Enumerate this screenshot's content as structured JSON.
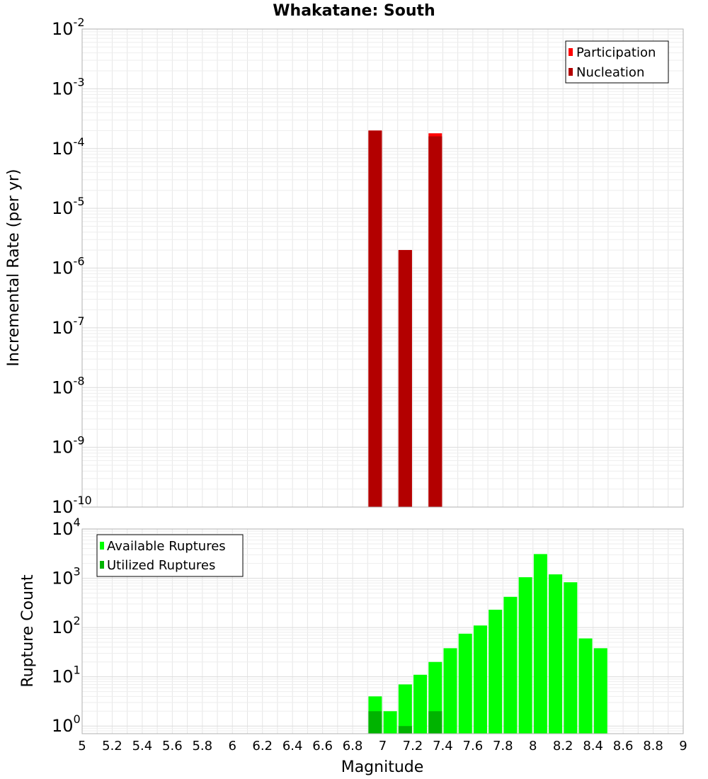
{
  "title": "Whakatane: South",
  "xlabel": "Magnitude",
  "colors": {
    "participation": "#ff0000",
    "nucleation": "#b30000",
    "available": "#00ff00",
    "utilized": "#00b300",
    "grid": "#e6e6e6",
    "frame": "#b0b0b0"
  },
  "chart_data": [
    {
      "type": "bar",
      "panel": "top",
      "ylabel": "Incremental Rate (per yr)",
      "yscale": "log",
      "ylim": [
        1e-10,
        0.01
      ],
      "xlim": [
        5,
        9
      ],
      "x_ticks": [
        "5",
        "5.2",
        "5.4",
        "5.6",
        "5.8",
        "6",
        "6.2",
        "6.4",
        "6.6",
        "6.8",
        "7",
        "7.2",
        "7.4",
        "7.6",
        "7.8",
        "8",
        "8.2",
        "8.4",
        "8.6",
        "8.8",
        "9"
      ],
      "y_ticks": [
        {
          "base": "10",
          "exp": "-10"
        },
        {
          "base": "10",
          "exp": "-9"
        },
        {
          "base": "10",
          "exp": "-8"
        },
        {
          "base": "10",
          "exp": "-7"
        },
        {
          "base": "10",
          "exp": "-6"
        },
        {
          "base": "10",
          "exp": "-5"
        },
        {
          "base": "10",
          "exp": "-4"
        },
        {
          "base": "10",
          "exp": "-3"
        },
        {
          "base": "10",
          "exp": "-2"
        }
      ],
      "legend": {
        "position": "top-right",
        "entries": [
          "Participation",
          "Nucleation"
        ]
      },
      "series": [
        {
          "name": "Participation",
          "x": [
            6.95,
            7.15,
            7.35
          ],
          "values": [
            0.0002,
            2e-06,
            0.00018
          ]
        },
        {
          "name": "Nucleation",
          "x": [
            6.95,
            7.15,
            7.35
          ],
          "values": [
            0.0002,
            2e-06,
            0.00016
          ]
        }
      ]
    },
    {
      "type": "bar",
      "panel": "bottom",
      "ylabel": "Rupture Count",
      "yscale": "log",
      "ylim": [
        0.7,
        10000
      ],
      "xlim": [
        5,
        9
      ],
      "y_ticks": [
        {
          "base": "10",
          "exp": "0"
        },
        {
          "base": "10",
          "exp": "1"
        },
        {
          "base": "10",
          "exp": "2"
        },
        {
          "base": "10",
          "exp": "3"
        },
        {
          "base": "10",
          "exp": "4"
        }
      ],
      "legend": {
        "position": "top-left",
        "entries": [
          "Available Ruptures",
          "Utilized Ruptures"
        ]
      },
      "series": [
        {
          "name": "Available Ruptures",
          "x": [
            6.95,
            7.05,
            7.15,
            7.25,
            7.35,
            7.45,
            7.55,
            7.65,
            7.75,
            7.85,
            7.95,
            8.05,
            8.15,
            8.25,
            8.35,
            8.45
          ],
          "values": [
            4,
            2,
            7,
            11,
            20,
            38,
            75,
            110,
            230,
            420,
            1050,
            3100,
            1200,
            830,
            60,
            38
          ]
        },
        {
          "name": "Utilized Ruptures",
          "x": [
            6.95,
            7.15,
            7.35
          ],
          "values": [
            2,
            1,
            2
          ]
        }
      ]
    }
  ]
}
